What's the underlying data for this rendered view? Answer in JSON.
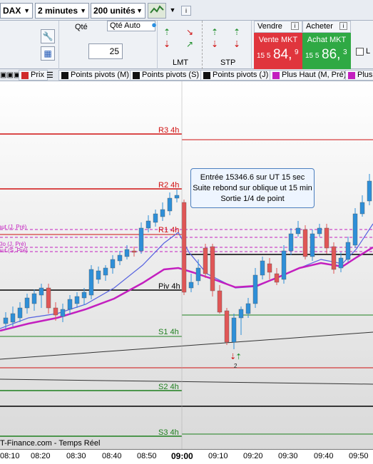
{
  "toolbar": {
    "instrument": "DAX",
    "timeframe": "2 minutes",
    "units": "200 unités"
  },
  "order_panel": {
    "qty_label": "Qté",
    "qty_auto_label": "Qté Auto",
    "qty_value": "25",
    "lmt_label": "LMT",
    "stp_label": "STP",
    "sell_header": "Vendre",
    "buy_header": "Acheter",
    "sell_title": "Vente MKT",
    "buy_title": "Achat MKT",
    "sell_prefix": "15 5",
    "sell_big": "84,",
    "sell_sup": "9",
    "buy_prefix": "15 5",
    "buy_big": "86,",
    "buy_sup": "3",
    "checkbox_label": "L"
  },
  "indicator_tabs": [
    {
      "label": "Prix",
      "color": "#d02a2a"
    },
    {
      "label": "Points pivots (M)",
      "color": "#111111"
    },
    {
      "label": "Points pivots (S)",
      "color": "#111111"
    },
    {
      "label": "Points pivots (J)",
      "color": "#111111"
    },
    {
      "label": "Plus Haut (M, Pré)",
      "color": "#c31fbf"
    },
    {
      "label": "Plus",
      "color": "#c31fbf"
    }
  ],
  "chart": {
    "level_labels": {
      "r3": "R3 4h",
      "r2": "R2 4h",
      "r1": "R1 4h",
      "piv": "Piv 4h",
      "s1": "S1 4h",
      "s2": "S2 4h",
      "s3": "S3 4h",
      "haut_j": "Haut (J, Pré)",
      "clo_j": "Clo (J, Pré)",
      "haut_s": "Haut (S, Pré)"
    },
    "trade_note": {
      "line1": "Entrée 15346.6 sur UT 15 sec",
      "line2": "Suite rebond sur oblique ut 15 min",
      "line3": "Sortie 1/4 de point"
    },
    "trade_marker_count": "2",
    "footer": "T-Finance.com - Temps Réel",
    "colors": {
      "up": "#2e8fd8",
      "down": "#e05656",
      "resistance": "#d01010",
      "support": "#1e7f1e",
      "pivot": "#000000",
      "prev_levels": "#c31fbf",
      "ma_fast": "#5561e0",
      "ma_slow": "#c31fbf"
    }
  },
  "time_axis": [
    "08:10",
    "08:20",
    "08:30",
    "08:40",
    "08:50",
    "09:00",
    "09:10",
    "09:20",
    "09:30",
    "09:40",
    "09:50"
  ]
}
